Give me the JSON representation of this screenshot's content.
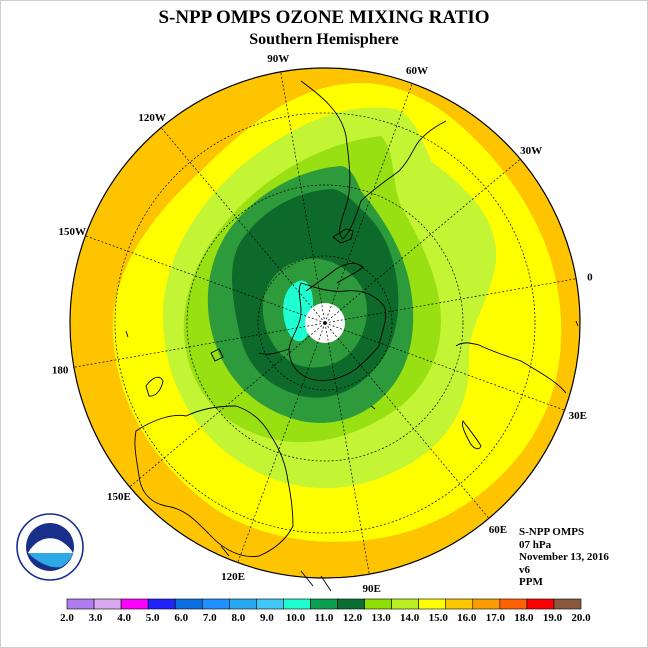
{
  "title": "S-NPP OMPS OZONE MIXING RATIO",
  "subtitle": "Southern Hemisphere",
  "info": {
    "instrument": "S-NPP OMPS",
    "level": "07 hPa",
    "date": "November 13, 2016",
    "version": "v6",
    "units": "PPM"
  },
  "logo_text": "NOAA",
  "grid_labels": [
    {
      "label": "90W",
      "angle": -100
    },
    {
      "label": "60W",
      "angle": -70
    },
    {
      "label": "30W",
      "angle": -40
    },
    {
      "label": "0",
      "angle": -10
    },
    {
      "label": "30E",
      "angle": 20
    },
    {
      "label": "60E",
      "angle": 50
    },
    {
      "label": "90E",
      "angle": 80
    },
    {
      "label": "120E",
      "angle": 110
    },
    {
      "label": "150E",
      "angle": 140
    },
    {
      "label": "180",
      "angle": 170
    },
    {
      "label": "150W",
      "angle": 200
    },
    {
      "label": "120W",
      "angle": 230
    }
  ],
  "colorbar": {
    "ticks": [
      "2.0",
      "3.0",
      "4.0",
      "5.0",
      "6.0",
      "7.0",
      "8.0",
      "9.0",
      "10.0",
      "11.0",
      "12.0",
      "13.0",
      "14.0",
      "15.0",
      "16.0",
      "17.0",
      "18.0",
      "19.0",
      "20.0"
    ],
    "colors": [
      "#b07cf0",
      "#d8a8f0",
      "#ff00ff",
      "#2222ff",
      "#0a6fe0",
      "#1e90ff",
      "#27a8f2",
      "#3fc8f8",
      "#1effd0",
      "#0aa050",
      "#0a6e30",
      "#8ee000",
      "#b8f020",
      "#ffff00",
      "#ffc800",
      "#ff9c00",
      "#ff6000",
      "#ff0000",
      "#8b5a3c"
    ]
  },
  "map_colors": {
    "c16": "#ffc400",
    "c15": "#ffff00",
    "c14": "#c4f535",
    "c13": "#98e012",
    "c12": "#2d9a3c",
    "c11": "#0d6a2a",
    "c9": "#1effd2",
    "pole": "#ffffff"
  }
}
